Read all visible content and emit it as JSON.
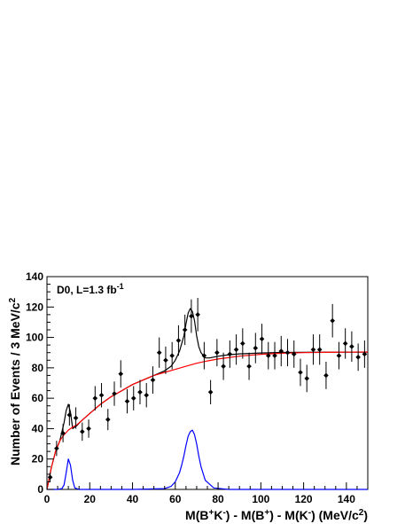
{
  "chart_data": {
    "type": "scatter",
    "annotation": "D0, L=1.3 fb",
    "annotation_sup": "-1",
    "xlim": [
      0,
      150
    ],
    "ylim": [
      0,
      140
    ],
    "x_ticks": [
      0,
      20,
      40,
      60,
      80,
      100,
      120,
      140
    ],
    "y_ticks": [
      0,
      20,
      40,
      60,
      80,
      100,
      120,
      140
    ],
    "grid": false,
    "legend": "none",
    "series": [
      {
        "type": "points_with_errors",
        "color": "#000000",
        "x": [
          1.5,
          4.5,
          7.5,
          10.5,
          13.5,
          16.5,
          19.5,
          22.5,
          25.5,
          28.5,
          31.5,
          34.5,
          37.5,
          40.5,
          43.5,
          46.5,
          49.5,
          52.5,
          55.5,
          58.5,
          61.5,
          64.5,
          67.5,
          70.5,
          73.5,
          76.5,
          79.5,
          82.5,
          85.5,
          88.5,
          91.5,
          94.5,
          97.5,
          100.5,
          103.5,
          106.5,
          109.5,
          112.5,
          115.5,
          118.5,
          121.5,
          124.5,
          127.5,
          130.5,
          133.5,
          136.5,
          139.5,
          142.5,
          145.5,
          148.5
        ],
        "y": [
          8,
          27,
          37,
          49,
          47,
          38,
          40,
          60,
          62,
          46,
          63,
          76,
          58,
          60,
          64,
          62,
          72,
          90,
          85,
          88,
          98,
          105,
          114,
          115,
          88,
          64,
          90,
          81,
          89,
          92,
          96,
          81,
          93,
          99,
          88,
          88,
          91,
          90,
          89,
          77,
          73,
          92,
          92,
          75,
          111,
          88,
          96,
          94,
          87,
          89
        ],
        "err": [
          3,
          5,
          6,
          7,
          7,
          6,
          6,
          8,
          8,
          7,
          8,
          9,
          8,
          8,
          8,
          8,
          9,
          10,
          9,
          9,
          10,
          10,
          11,
          11,
          9,
          8,
          9,
          9,
          9,
          10,
          10,
          9,
          10,
          10,
          9,
          9,
          10,
          9,
          9,
          9,
          9,
          10,
          10,
          9,
          11,
          9,
          10,
          10,
          9,
          9
        ]
      },
      {
        "type": "curve",
        "color": "#000000",
        "x": [
          0,
          2,
          4,
          6,
          8,
          9,
          10,
          11,
          12,
          14,
          16,
          20,
          25,
          30,
          35,
          40,
          45,
          50,
          55,
          58,
          60,
          62,
          64,
          65,
          66,
          67,
          68,
          69,
          70,
          71,
          72,
          74,
          76,
          80,
          85,
          90,
          100,
          110,
          120,
          130,
          140,
          150
        ],
        "y": [
          0,
          14,
          25,
          32,
          44,
          52,
          56,
          51,
          40,
          42,
          45,
          50,
          56,
          61,
          65,
          69,
          72,
          75,
          78,
          81,
          85,
          91,
          101,
          109,
          116,
          119,
          117,
          111,
          101,
          94,
          90,
          86.5,
          86.5,
          87.6,
          88.6,
          89.2,
          89.8,
          90.1,
          90.2,
          90.3,
          90.3,
          90.3
        ]
      },
      {
        "type": "curve",
        "color": "#ff0000",
        "x": [
          0,
          2,
          4,
          6,
          8,
          10,
          12,
          14,
          16,
          20,
          25,
          30,
          35,
          40,
          45,
          50,
          55,
          60,
          65,
          70,
          75,
          80,
          90,
          100,
          110,
          120,
          130,
          140,
          150
        ],
        "y": [
          0,
          14,
          25,
          32,
          36,
          39,
          41,
          42.5,
          45,
          50,
          56,
          61,
          65,
          69,
          72,
          75,
          77,
          79,
          81,
          83,
          84.5,
          85.8,
          87.7,
          88.9,
          89.6,
          90.0,
          90.2,
          90.3,
          90.4
        ]
      },
      {
        "type": "curve",
        "color": "#0000ff",
        "x": [
          0,
          5,
          7,
          8,
          9,
          10,
          11,
          12,
          13,
          15,
          20,
          40,
          55,
          58,
          60,
          62,
          63,
          64,
          65,
          66,
          67,
          68,
          69,
          70,
          71,
          72,
          74,
          78,
          85,
          150
        ],
        "y": [
          0,
          0,
          0.5,
          3,
          11,
          20,
          16,
          6,
          1,
          0,
          0,
          0,
          0.5,
          2,
          5,
          11,
          16,
          22,
          29,
          35,
          38,
          39,
          36,
          30,
          22,
          15,
          6,
          1,
          0,
          0
        ]
      }
    ]
  }
}
